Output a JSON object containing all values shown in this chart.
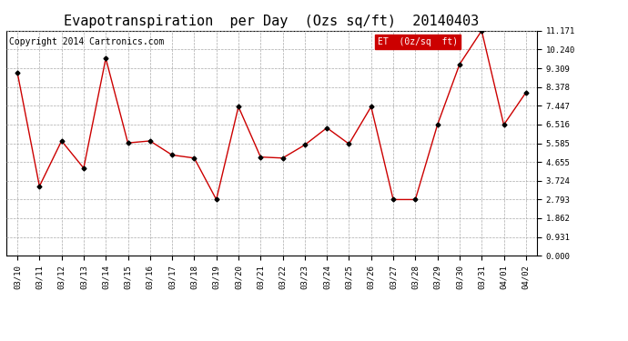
{
  "title": "Evapotranspiration  per Day  (Ozs sq/ft)  20140403",
  "copyright": "Copyright 2014 Cartronics.com",
  "legend_label": "ET  (0z/sq  ft)",
  "dates": [
    "03/10",
    "03/11",
    "03/12",
    "03/13",
    "03/14",
    "03/15",
    "03/16",
    "03/17",
    "03/18",
    "03/19",
    "03/20",
    "03/21",
    "03/22",
    "03/23",
    "03/24",
    "03/25",
    "03/26",
    "03/27",
    "03/28",
    "03/29",
    "03/30",
    "03/31",
    "04/01",
    "04/02"
  ],
  "values": [
    9.1,
    3.45,
    5.7,
    4.35,
    9.8,
    5.6,
    5.7,
    5.0,
    4.85,
    2.79,
    7.4,
    4.9,
    4.85,
    5.5,
    6.35,
    5.55,
    7.4,
    2.79,
    2.79,
    6.5,
    9.5,
    11.171,
    6.5,
    8.1
  ],
  "ylim": [
    0.0,
    11.171
  ],
  "yticks": [
    0.0,
    0.931,
    1.862,
    2.793,
    3.724,
    4.655,
    5.585,
    6.516,
    7.447,
    8.378,
    9.309,
    10.24,
    11.171
  ],
  "line_color": "#cc0000",
  "marker_color": "#000000",
  "background_color": "#ffffff",
  "grid_color": "#aaaaaa",
  "title_fontsize": 11,
  "copyright_fontsize": 7,
  "tick_fontsize": 6.5,
  "legend_bg": "#cc0000",
  "legend_fg": "#ffffff",
  "legend_fontsize": 7
}
